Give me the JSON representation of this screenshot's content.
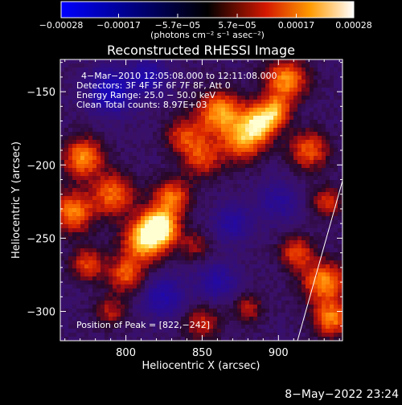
{
  "chart_data": {
    "type": "heatmap",
    "title": "Reconstructed RHESSI Image",
    "xlabel": "Heliocentric X (arcsec)",
    "ylabel": "Heliocentric Y (arcsec)",
    "xlim": [
      757,
      942
    ],
    "ylim": [
      -320,
      -128
    ],
    "x_ticks": [
      800,
      850,
      900
    ],
    "x_tick_labels": [
      "800",
      "850",
      "900"
    ],
    "y_ticks": [
      -150,
      -200,
      -250,
      -300
    ],
    "y_tick_labels": [
      "−150",
      "−200",
      "−250",
      "−300"
    ],
    "colorbar": {
      "min": -0.00028,
      "max": 0.00028,
      "ticks": [
        -0.00028,
        -0.00017,
        -5.7e-05,
        5.7e-05,
        0.00017,
        0.00028
      ],
      "tick_labels": [
        "−0.00028",
        "−0.00017",
        "−5.7e−05",
        "5.7e−05",
        "0.00017",
        "0.00028"
      ],
      "unit_label": "(photons cm⁻² s⁻¹ asec⁻²)"
    },
    "info_lines": [
      "4−Mar−2010 12:05:08.000 to 12:11:08.000",
      "Detectors: 3F 4F 5F 6F 7F 8F, Att 0",
      "Energy Range: 25.0 − 50.0 keV",
      "Clean     Total counts: 8.97E+03"
    ],
    "peak_label": "Position of Peak = [822,−242]",
    "peak": [
      822,
      -242
    ],
    "grid": false,
    "blobs": [
      {
        "x": 822,
        "y": -242,
        "r": 12,
        "v": 1.0
      },
      {
        "x": 812,
        "y": -252,
        "r": 14,
        "v": 0.8
      },
      {
        "x": 830,
        "y": -222,
        "r": 12,
        "v": 0.6
      },
      {
        "x": 800,
        "y": -275,
        "r": 12,
        "v": 0.55
      },
      {
        "x": 792,
        "y": -220,
        "r": 14,
        "v": 0.6
      },
      {
        "x": 772,
        "y": -195,
        "r": 13,
        "v": 0.7
      },
      {
        "x": 765,
        "y": -232,
        "r": 14,
        "v": 0.65
      },
      {
        "x": 775,
        "y": -268,
        "r": 11,
        "v": 0.5
      },
      {
        "x": 862,
        "y": -165,
        "r": 15,
        "v": 0.75
      },
      {
        "x": 876,
        "y": -185,
        "r": 13,
        "v": 0.6
      },
      {
        "x": 887,
        "y": -172,
        "r": 12,
        "v": 0.85
      },
      {
        "x": 905,
        "y": -142,
        "r": 14,
        "v": 0.7
      },
      {
        "x": 898,
        "y": -163,
        "r": 10,
        "v": 0.6
      },
      {
        "x": 850,
        "y": -195,
        "r": 13,
        "v": 0.5
      },
      {
        "x": 838,
        "y": -180,
        "r": 12,
        "v": 0.45
      },
      {
        "x": 920,
        "y": -190,
        "r": 13,
        "v": 0.55
      },
      {
        "x": 932,
        "y": -225,
        "r": 10,
        "v": 0.45
      },
      {
        "x": 930,
        "y": -280,
        "r": 14,
        "v": 0.7
      },
      {
        "x": 935,
        "y": -305,
        "r": 12,
        "v": 0.65
      },
      {
        "x": 912,
        "y": -260,
        "r": 11,
        "v": 0.5
      },
      {
        "x": 880,
        "y": -298,
        "r": 10,
        "v": 0.35
      },
      {
        "x": 790,
        "y": -300,
        "r": 10,
        "v": 0.35
      },
      {
        "x": 850,
        "y": -308,
        "r": 12,
        "v": 0.4
      },
      {
        "x": 845,
        "y": -255,
        "r": 10,
        "v": 0.3
      },
      {
        "x": 870,
        "y": -240,
        "r": 12,
        "v": -0.35
      },
      {
        "x": 790,
        "y": -150,
        "r": 14,
        "v": -0.6
      },
      {
        "x": 815,
        "y": -140,
        "r": 12,
        "v": -0.45
      },
      {
        "x": 825,
        "y": -290,
        "r": 14,
        "v": -0.4
      },
      {
        "x": 900,
        "y": -225,
        "r": 14,
        "v": -0.3
      },
      {
        "x": 860,
        "y": -280,
        "r": 13,
        "v": -0.35
      }
    ]
  },
  "footer": {
    "date": "8−May−2022 23:24"
  }
}
